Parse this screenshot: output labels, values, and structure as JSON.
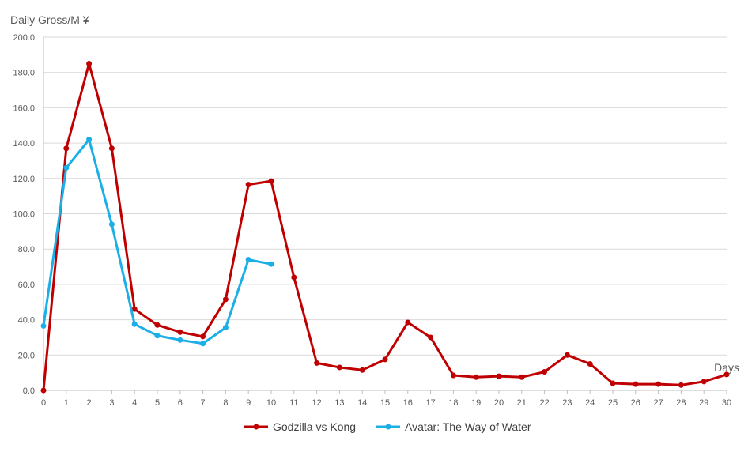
{
  "chart_data": {
    "type": "line",
    "ylabel": "Daily Gross/M ¥",
    "xlabel": "Days",
    "x": [
      0,
      1,
      2,
      3,
      4,
      5,
      6,
      7,
      8,
      9,
      10,
      11,
      12,
      13,
      14,
      15,
      16,
      17,
      18,
      19,
      20,
      21,
      22,
      23,
      24,
      25,
      26,
      27,
      28,
      29,
      30
    ],
    "ylim": [
      0,
      200
    ],
    "xlim": [
      0,
      30
    ],
    "yticks": [
      "0.0",
      "20.0",
      "40.0",
      "60.0",
      "80.0",
      "100.0",
      "120.0",
      "140.0",
      "160.0",
      "180.0",
      "200.0"
    ],
    "grid": "horizontal",
    "legend_position": "bottom",
    "series": [
      {
        "name": "Godzilla vs Kong",
        "color": "#c00000",
        "x": [
          0,
          1,
          2,
          3,
          4,
          5,
          6,
          7,
          8,
          9,
          10,
          11,
          12,
          13,
          14,
          15,
          16,
          17,
          18,
          19,
          20,
          21,
          22,
          23,
          24,
          25,
          26,
          27,
          28,
          29,
          30
        ],
        "values": [
          0.0,
          137.0,
          185.0,
          137.0,
          46.0,
          37.0,
          33.0,
          30.5,
          51.5,
          116.5,
          118.5,
          64.0,
          15.5,
          13.0,
          11.5,
          17.5,
          38.5,
          30.0,
          8.5,
          7.5,
          8.0,
          7.5,
          10.5,
          20.0,
          15.0,
          4.0,
          3.5,
          3.5,
          3.0,
          5.0,
          9.0
        ]
      },
      {
        "name": "Avatar: The Way of Water",
        "color": "#1aafe6",
        "x": [
          0,
          1,
          2,
          3,
          4,
          5,
          6,
          7,
          8,
          9,
          10
        ],
        "values": [
          36.5,
          126.0,
          142.0,
          94.0,
          37.5,
          31.0,
          28.5,
          26.5,
          35.5,
          74.0,
          71.5
        ]
      }
    ]
  }
}
